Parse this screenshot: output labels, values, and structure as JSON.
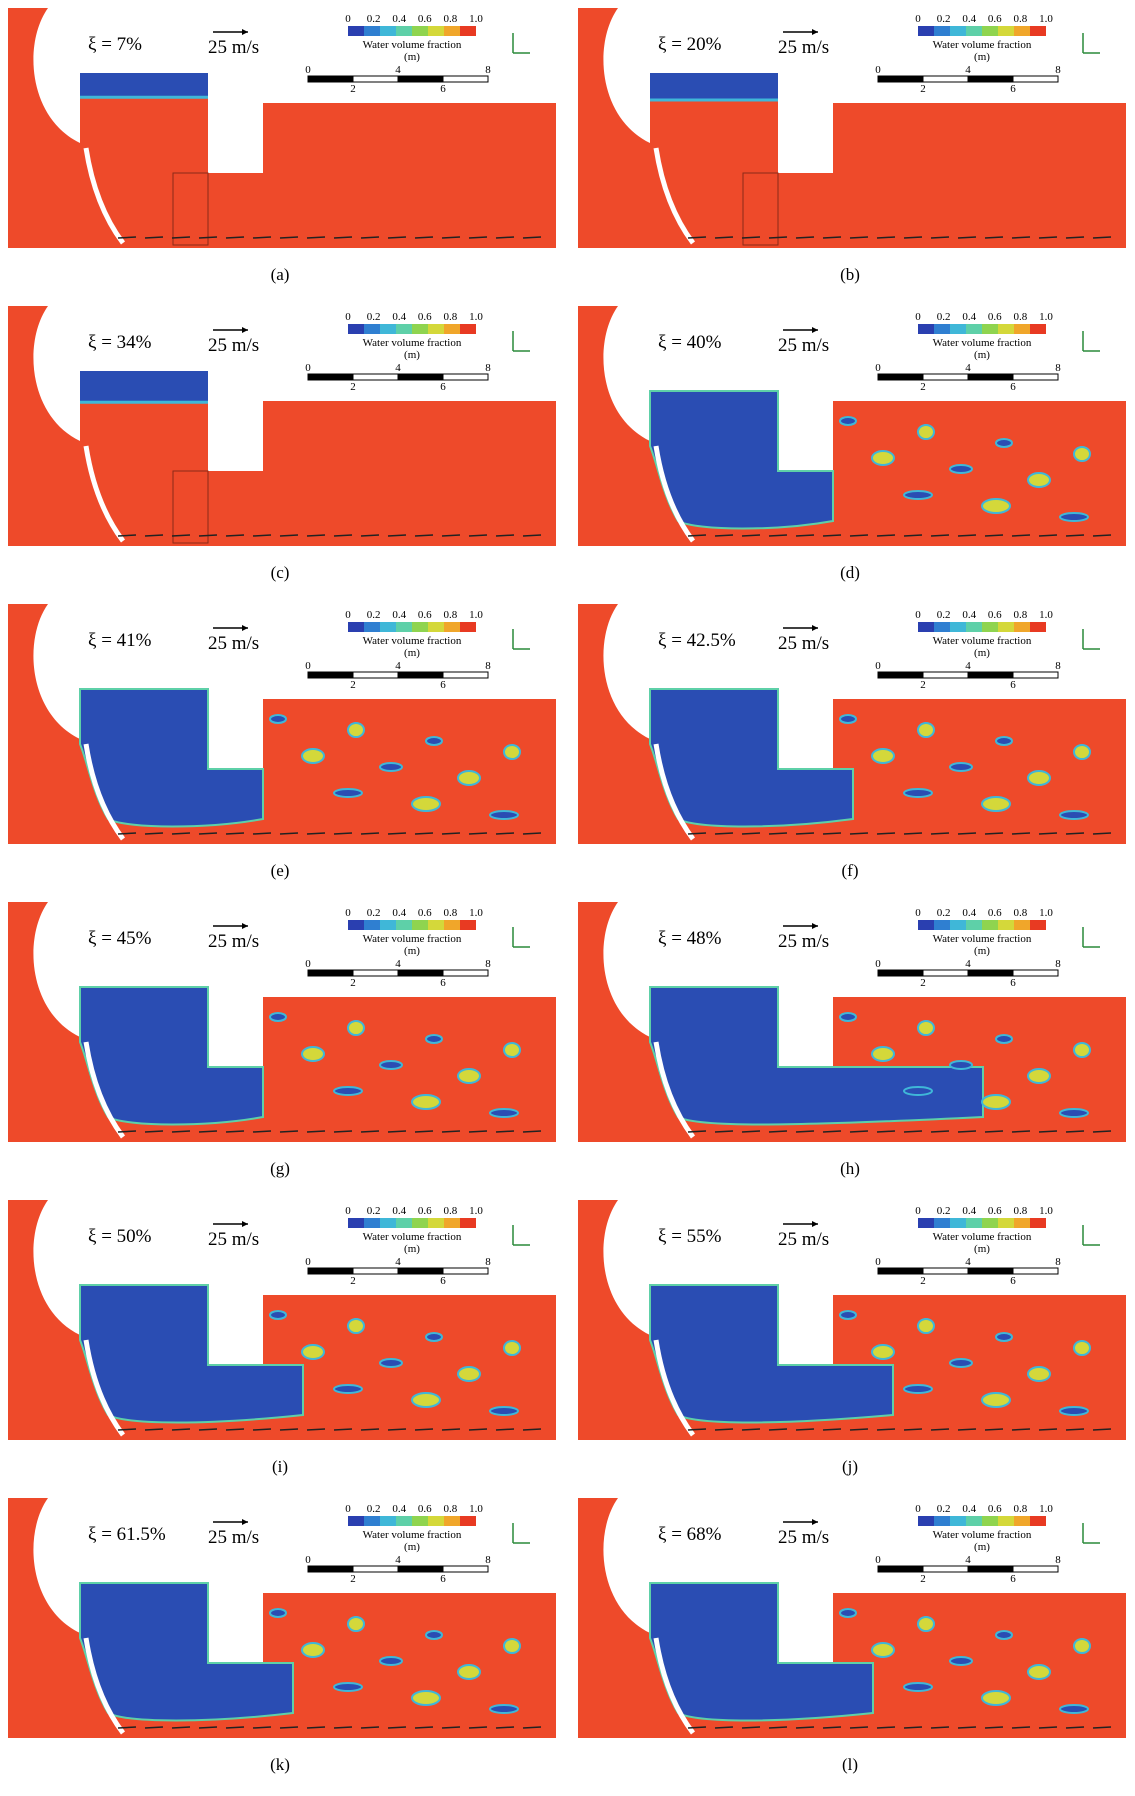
{
  "panels": [
    {
      "xi": "ξ = 7%",
      "speed": "25 m/s",
      "caption": "(a)"
    },
    {
      "xi": "ξ = 20%",
      "speed": "25 m/s",
      "caption": "(b)"
    },
    {
      "xi": "ξ = 34%",
      "speed": "25 m/s",
      "caption": "(c)"
    },
    {
      "xi": "ξ = 40%",
      "speed": "25 m/s",
      "caption": "(d)"
    },
    {
      "xi": "ξ = 41%",
      "speed": "25 m/s",
      "caption": "(e)"
    },
    {
      "xi": "ξ = 42.5%",
      "speed": "25 m/s",
      "caption": "(f)"
    },
    {
      "xi": "ξ = 45%",
      "speed": "25 m/s",
      "caption": "(g)"
    },
    {
      "xi": "ξ = 48%",
      "speed": "25 m/s",
      "caption": "(h)"
    },
    {
      "xi": "ξ = 50%",
      "speed": "25 m/s",
      "caption": "(i)"
    },
    {
      "xi": "ξ = 55%",
      "speed": "25 m/s",
      "caption": "(j)"
    },
    {
      "xi": "ξ = 61.5%",
      "speed": "25 m/s",
      "caption": "(k)"
    },
    {
      "xi": "ξ = 68%",
      "speed": "25 m/s",
      "caption": "(l)"
    }
  ],
  "legend": {
    "title": "Water volume fraction",
    "unit": "(m)",
    "colorbar_ticks": [
      "0",
      "0.2",
      "0.4",
      "0.6",
      "0.8",
      "1.0"
    ],
    "scale_ticks_top": [
      "0",
      "4",
      "8"
    ],
    "scale_ticks_bottom": [
      "2",
      "6"
    ]
  }
}
